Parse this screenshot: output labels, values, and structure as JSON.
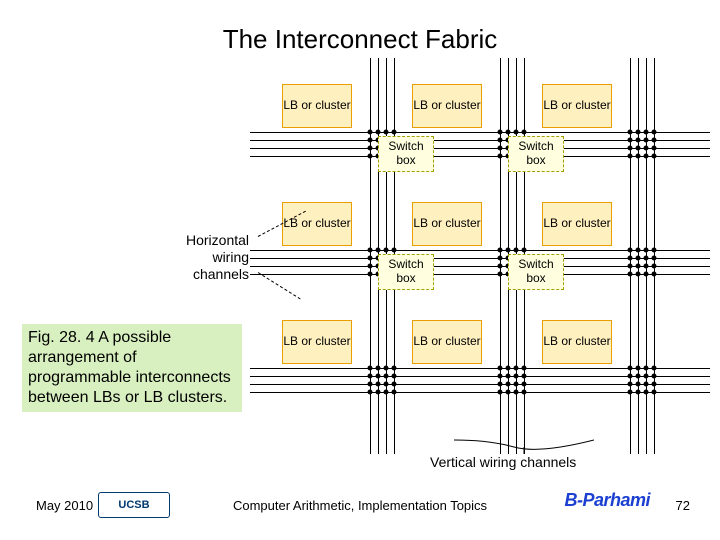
{
  "title": "The Interconnect Fabric",
  "lb_label": "LB or cluster",
  "sw_label": "Switch box",
  "hwc_label_lines": [
    "Horizontal",
    "wiring",
    "channels"
  ],
  "vwc_label": "Vertical wiring channels",
  "caption": "Fig. 28. 4    A possible arrangement of programmable interconnects between LBs or LB clusters.",
  "footer": {
    "date": "May 2010",
    "mid": "Computer Arithmetic, Implementation Topics",
    "page": "72"
  },
  "logo1": "UCSB",
  "logo2": "B-Parhami",
  "colors": {
    "lb_fill": "#fff0c0",
    "lb_border": "#e8a000",
    "sw_fill": "#ffffe0",
    "sw_border": "#a0a000",
    "caption_bg": "#d8f0c0",
    "line": "#000000"
  },
  "layout": {
    "chan_offsets": [
      0,
      8,
      16,
      24
    ],
    "row_chan_y": [
      62,
      180,
      298
    ],
    "col_chan_x": [
      90,
      220,
      350
    ],
    "lb_rows_y": [
      14,
      132,
      250
    ],
    "lb_cols_x": [
      2,
      132,
      262
    ],
    "sw_rows_y": [
      66,
      184
    ],
    "sw_cols_x": [
      98,
      228
    ],
    "dot_rows": [
      62,
      70,
      78,
      86,
      180,
      188,
      196,
      204,
      298,
      306,
      314,
      322
    ],
    "dot_cols": [
      90,
      98,
      106,
      114,
      220,
      228,
      236,
      244,
      350,
      358,
      366,
      374
    ]
  }
}
